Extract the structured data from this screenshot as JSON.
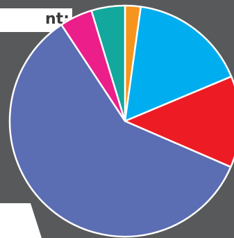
{
  "title_fragment": "nt:",
  "colors": {
    "background": "#58595b",
    "band": "#ffffff",
    "slice_border": "#ffffff"
  },
  "chart_data": {
    "type": "pie",
    "title": "",
    "start_angle_deg": 0,
    "direction": "clockwise",
    "slices": [
      {
        "value": 2.2,
        "color": "#f7941d"
      },
      {
        "value": 16.5,
        "color": "#00aeef"
      },
      {
        "value": 12.8,
        "color": "#ed1c24"
      },
      {
        "value": 59.2,
        "color": "#5b6db3"
      },
      {
        "value": 4.6,
        "color": "#ec1e8a"
      },
      {
        "value": 4.7,
        "color": "#12a89d"
      }
    ]
  }
}
